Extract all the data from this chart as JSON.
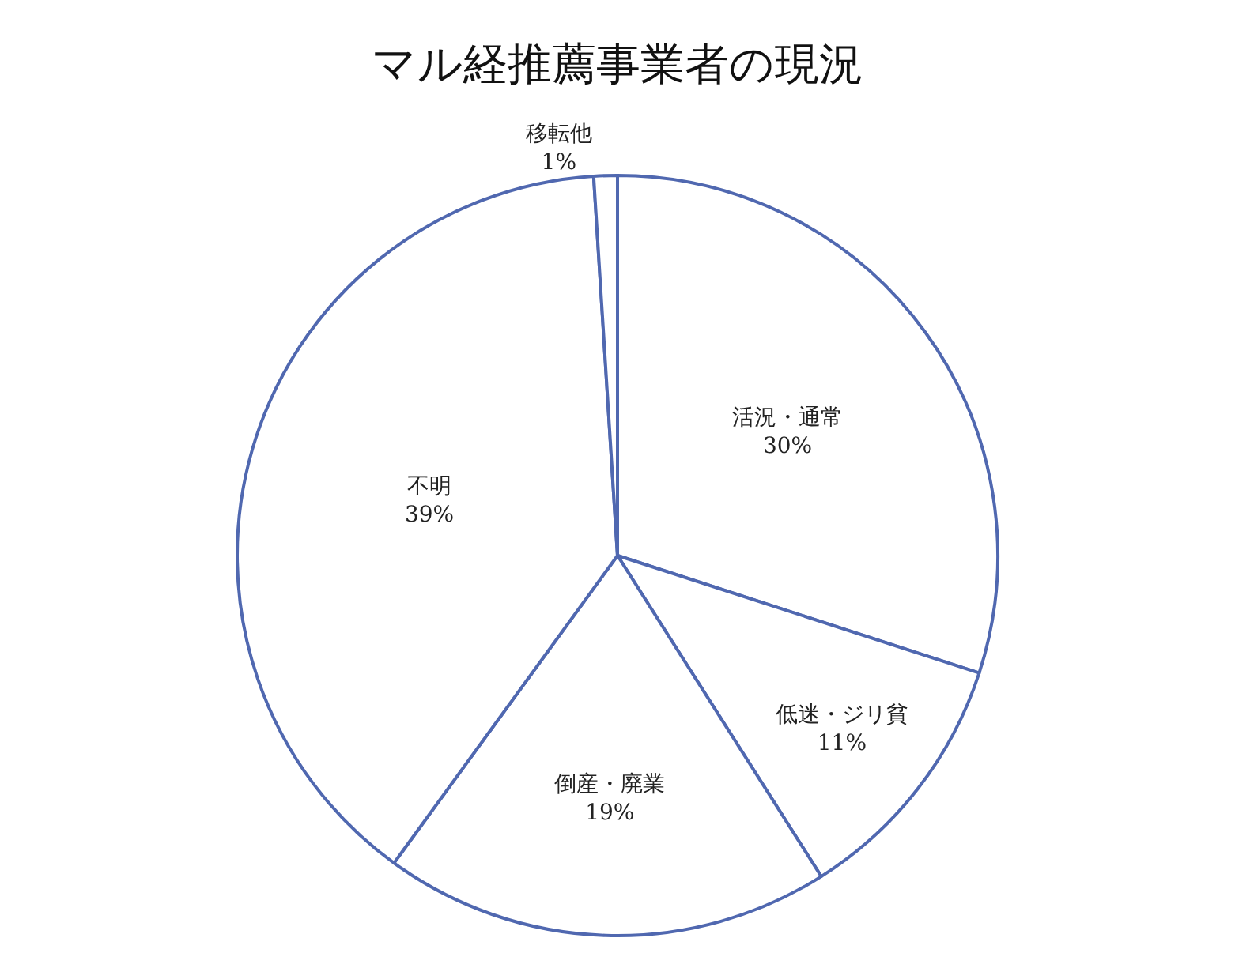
{
  "chart_data": {
    "type": "pie",
    "title": "マル経推薦事業者の現況",
    "categories": [
      "活況・通常",
      "低迷・ジリ貧",
      "倒産・廃業",
      "不明",
      "移転他"
    ],
    "values": [
      30,
      11,
      19,
      39,
      1
    ],
    "value_labels": [
      "30%",
      "11%",
      "19%",
      "39%",
      "1%"
    ],
    "colors": [
      "#ffffff",
      "#ffffff",
      "#ffffff",
      "#ffffff",
      "#ffffff"
    ],
    "legend": false
  }
}
